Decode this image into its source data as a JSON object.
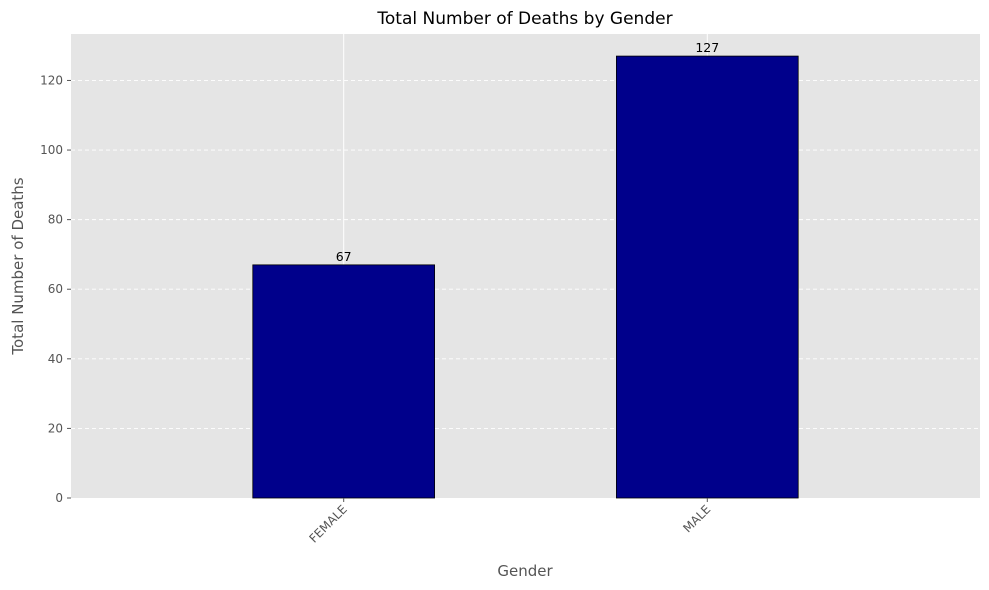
{
  "chart_data": {
    "type": "bar",
    "title": "Total Number of Deaths by Gender",
    "xlabel": "Gender",
    "ylabel": "Total Number of Deaths",
    "categories": [
      "FEMALE",
      "MALE"
    ],
    "values": [
      67,
      127
    ],
    "data_labels": [
      "67",
      "127"
    ],
    "ylim": [
      0,
      133.35
    ],
    "yticks": [
      0,
      20,
      40,
      60,
      80,
      100,
      120
    ],
    "x_tick_rotation_deg": 45,
    "grid": {
      "y": true,
      "y_style": "dashed",
      "x": true
    },
    "legend": "none",
    "colors": {
      "bar": "#00008b",
      "plot_background": "#e5e5e5",
      "grid": "#ffffff",
      "axis_text": "#555555",
      "title_text": "#000000"
    }
  }
}
